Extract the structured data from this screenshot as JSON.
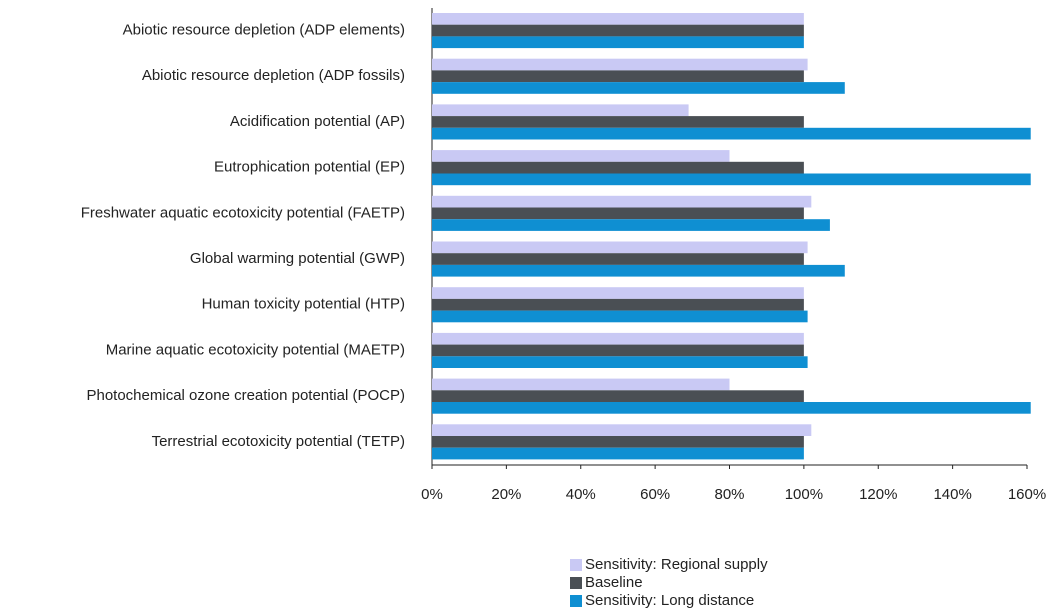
{
  "chart_data": {
    "type": "barh",
    "categories": [
      "Abiotic resource depletion (ADP elements)",
      "Abiotic resource depletion (ADP fossils)",
      "Acidification potential (AP)",
      "Eutrophication potential (EP)",
      "Freshwater aquatic ecotoxicity potential (FAETP)",
      "Global warming potential (GWP)",
      "Human toxicity potential (HTP)",
      "Marine aquatic ecotoxicity potential (MAETP)",
      "Photochemical ozone creation potential (POCP)",
      "Terrestrial ecotoxicity potential (TETP)"
    ],
    "series": [
      {
        "name": "Sensitivity: Regional supply",
        "color": "#c9c9f4",
        "values": [
          100,
          101,
          69,
          80,
          102,
          101,
          100,
          100,
          80,
          102
        ]
      },
      {
        "name": "Baseline",
        "color": "#4a4f54",
        "values": [
          100,
          100,
          100,
          100,
          100,
          100,
          100,
          100,
          100,
          100
        ]
      },
      {
        "name": "Sensitivity: Long distance",
        "color": "#0f8fd2",
        "values": [
          100,
          111,
          161,
          161,
          107,
          111,
          101,
          101,
          161,
          100
        ]
      }
    ],
    "xlim": [
      0,
      160
    ],
    "xticks": [
      {
        "value": 0,
        "label": "0%"
      },
      {
        "value": 20,
        "label": "20%"
      },
      {
        "value": 40,
        "label": "40%"
      },
      {
        "value": 60,
        "label": "60%"
      },
      {
        "value": 80,
        "label": "80%"
      },
      {
        "value": 100,
        "label": "100%"
      },
      {
        "value": 120,
        "label": "120%"
      },
      {
        "value": 140,
        "label": "140%"
      },
      {
        "value": 160,
        "label": "160%"
      }
    ],
    "legend": "bottom"
  }
}
